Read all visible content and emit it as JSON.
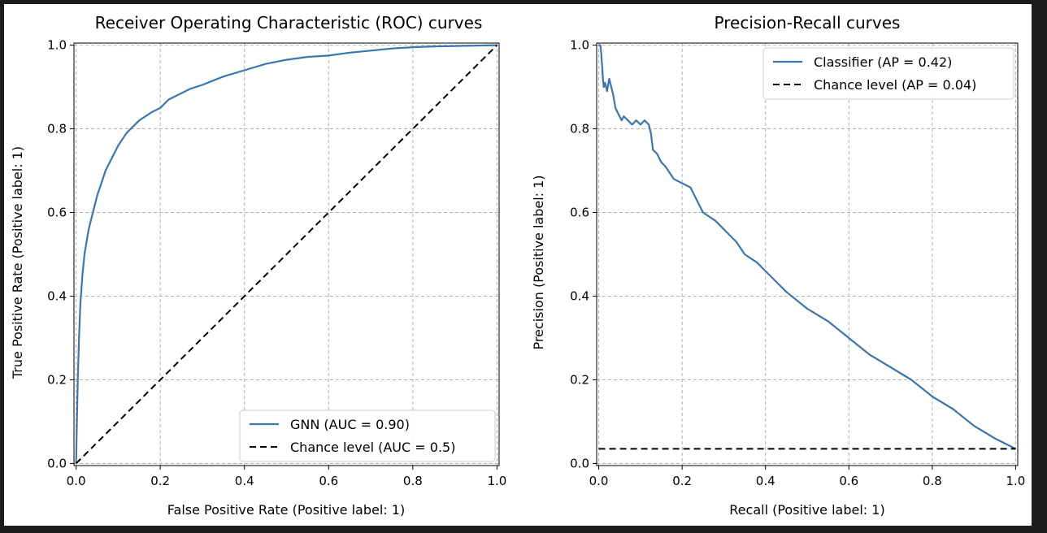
{
  "chart_data": [
    {
      "type": "line",
      "title": "Receiver Operating Characteristic (ROC) curves",
      "xlabel": "False Positive Rate (Positive label: 1)",
      "ylabel": "True Positive Rate (Positive label: 1)",
      "xlim": [
        0,
        1
      ],
      "ylim": [
        0,
        1
      ],
      "xticks": [
        "0.0",
        "0.2",
        "0.4",
        "0.6",
        "0.8",
        "1.0"
      ],
      "yticks": [
        "0.0",
        "0.2",
        "0.4",
        "0.6",
        "0.8",
        "1.0"
      ],
      "grid": true,
      "legend_position": "lower-right",
      "series": [
        {
          "name": "GNN (AUC = 0.90)",
          "color": "#3a76b0",
          "style": "solid",
          "x": [
            0,
            0.002,
            0.004,
            0.007,
            0.01,
            0.015,
            0.02,
            0.03,
            0.04,
            0.05,
            0.06,
            0.07,
            0.08,
            0.1,
            0.12,
            0.15,
            0.18,
            0.2,
            0.22,
            0.24,
            0.27,
            0.3,
            0.35,
            0.4,
            0.45,
            0.5,
            0.55,
            0.6,
            0.65,
            0.7,
            0.75,
            0.8,
            0.85,
            0.9,
            0.95,
            1.0
          ],
          "y": [
            0,
            0.1,
            0.2,
            0.3,
            0.38,
            0.45,
            0.5,
            0.56,
            0.6,
            0.64,
            0.67,
            0.7,
            0.72,
            0.76,
            0.79,
            0.82,
            0.84,
            0.85,
            0.87,
            0.88,
            0.895,
            0.905,
            0.925,
            0.94,
            0.955,
            0.965,
            0.972,
            0.975,
            0.982,
            0.987,
            0.992,
            0.995,
            0.997,
            0.998,
            0.999,
            1.0
          ]
        },
        {
          "name": "Chance level (AUC = 0.5)",
          "color": "#000000",
          "style": "dashed",
          "x": [
            0,
            1
          ],
          "y": [
            0,
            1
          ]
        }
      ]
    },
    {
      "type": "line",
      "title": "Precision-Recall curves",
      "xlabel": "Recall (Positive label: 1)",
      "ylabel": "Precision (Positive label: 1)",
      "xlim": [
        0,
        1
      ],
      "ylim": [
        0,
        1
      ],
      "xticks": [
        "0.0",
        "0.2",
        "0.4",
        "0.6",
        "0.8",
        "1.0"
      ],
      "yticks": [
        "0.0",
        "0.2",
        "0.4",
        "0.6",
        "0.8",
        "1.0"
      ],
      "grid": true,
      "legend_position": "upper-right",
      "series": [
        {
          "name": "Classifier (AP = 0.42)",
          "color": "#3a76b0",
          "style": "solid",
          "x": [
            0,
            0.004,
            0.006,
            0.008,
            0.01,
            0.012,
            0.015,
            0.02,
            0.025,
            0.03,
            0.035,
            0.04,
            0.045,
            0.05,
            0.055,
            0.06,
            0.07,
            0.08,
            0.09,
            0.1,
            0.11,
            0.12,
            0.125,
            0.13,
            0.14,
            0.15,
            0.16,
            0.18,
            0.2,
            0.22,
            0.25,
            0.28,
            0.3,
            0.33,
            0.35,
            0.38,
            0.4,
            0.43,
            0.45,
            0.5,
            0.55,
            0.6,
            0.65,
            0.7,
            0.75,
            0.8,
            0.85,
            0.9,
            0.95,
            1.0
          ],
          "y": [
            1.0,
            1.0,
            0.98,
            0.95,
            0.92,
            0.9,
            0.91,
            0.89,
            0.92,
            0.9,
            0.88,
            0.85,
            0.84,
            0.83,
            0.82,
            0.83,
            0.82,
            0.81,
            0.82,
            0.81,
            0.82,
            0.81,
            0.79,
            0.75,
            0.74,
            0.72,
            0.71,
            0.68,
            0.67,
            0.66,
            0.6,
            0.58,
            0.56,
            0.53,
            0.5,
            0.48,
            0.46,
            0.43,
            0.41,
            0.37,
            0.34,
            0.3,
            0.26,
            0.23,
            0.2,
            0.16,
            0.13,
            0.09,
            0.06,
            0.035
          ]
        },
        {
          "name": "Chance level (AP = 0.04)",
          "color": "#000000",
          "style": "dashed",
          "x": [
            0,
            1
          ],
          "y": [
            0.035,
            0.035
          ]
        }
      ]
    }
  ]
}
